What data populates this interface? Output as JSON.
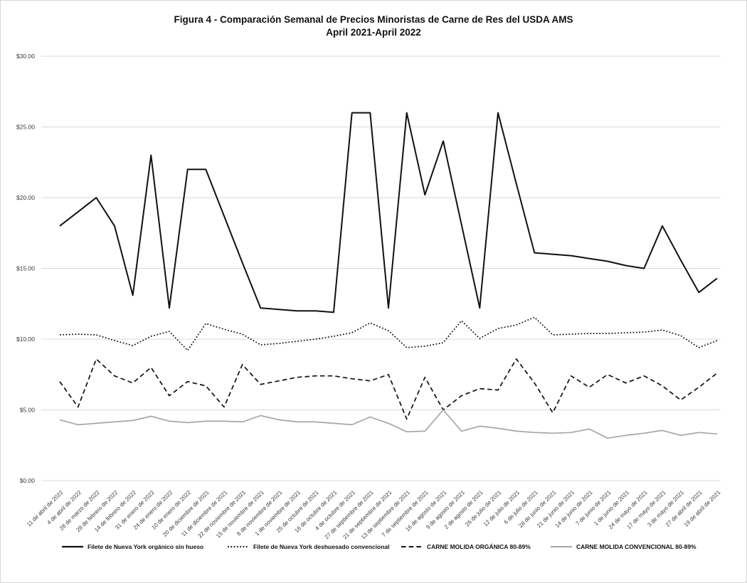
{
  "title": {
    "line1": "Figura 4 - Comparación Semanal de Precios Minoristas de Carne de Res del USDA AMS",
    "line2": "April 2021-April 2022"
  },
  "chart_data": {
    "type": "line",
    "title": "Figura 4 - Comparación Semanal de Precios Minoristas de Carne de Res del USDA AMS April 2021-April 2022",
    "xlabel": "",
    "ylabel": "",
    "ylim": [
      0,
      30
    ],
    "grid": true,
    "legend_position": "bottom",
    "y_ticks": [
      "$0.00",
      "$5.00",
      "$10.00",
      "$15.00",
      "$20.00",
      "$25.00",
      "$30.00"
    ],
    "categories": [
      "11 de abril de 2022",
      "4 de abril de 2022",
      "28 de marzo de 2022",
      "28 de febrero de 2022",
      "14 de febrero de 2022",
      "31 de enero de 2022",
      "24 de enero de 2022",
      "10 de enero de 2022",
      "20 de diciembre de 2021",
      "11 de diciembre de 2021",
      "22 de noviembre de 2021",
      "15 de noviembre de 2021",
      "8 de noviembre de 2021",
      "1 de noviembre de 2021",
      "25 de octubre de 2021",
      "18 de octubre de 2021",
      "4 de octubre de 2021",
      "27 de septiembre de 2021",
      "21 de septiembre de 2021",
      "13 de septiembre de 2021",
      "7 de septiembre de 2021",
      "16 de agosto de 2021",
      "9 de agosto de 2021",
      "2 de agosto de 2021",
      "26 de julio de 2021",
      "12 de julio de 2021",
      "6 de julio de 2021",
      "28 de junio de 2021",
      "21 de junio de 2021",
      "14 de junio de 2021",
      "7 de junio de 2021",
      "1 de junio de 2021",
      "24 de mayo de 2021",
      "17 de mayo de 2021",
      "3 de mayo de 2021",
      "27 de abril de 2021",
      "19 de abril de 2021"
    ],
    "series": [
      {
        "name": "Filete de Nueva York orgánico sin hueso",
        "style": "solid",
        "color": "#111111",
        "width": 2,
        "values": [
          18.0,
          19.0,
          20.0,
          18.0,
          13.1,
          23.0,
          12.2,
          22.0,
          22.0,
          18.7,
          15.4,
          12.2,
          12.1,
          12.0,
          12.0,
          11.9,
          26.0,
          26.0,
          12.2,
          26.0,
          20.2,
          24.0,
          18.1,
          12.2,
          26.0,
          21.0,
          16.1,
          16.0,
          15.9,
          15.7,
          15.5,
          15.2,
          15.0,
          18.0,
          15.6,
          13.3,
          14.3
        ]
      },
      {
        "name": "Filete de Nueva York deshuesado convencional",
        "style": "dotted",
        "color": "#111111",
        "width": 1.7,
        "values": [
          10.3,
          10.35,
          10.3,
          9.9,
          9.55,
          10.2,
          10.55,
          9.2,
          11.1,
          10.7,
          10.35,
          9.6,
          9.7,
          9.85,
          10.0,
          10.2,
          10.45,
          11.15,
          10.6,
          9.4,
          9.5,
          9.75,
          11.3,
          10.05,
          10.75,
          11.0,
          11.55,
          10.3,
          10.35,
          10.4,
          10.4,
          10.45,
          10.5,
          10.65,
          10.25,
          9.4,
          9.9
        ]
      },
      {
        "name": "CARNE MOLIDA ORGÁNICA 80-89%",
        "style": "dashed",
        "color": "#111111",
        "width": 1.7,
        "values": [
          7.0,
          5.2,
          8.6,
          7.4,
          6.9,
          8.0,
          6.0,
          7.0,
          6.7,
          5.2,
          8.2,
          6.8,
          7.05,
          7.3,
          7.4,
          7.4,
          7.2,
          7.05,
          7.5,
          4.35,
          7.3,
          5.0,
          6.0,
          6.5,
          6.4,
          8.6,
          6.9,
          4.8,
          7.4,
          6.6,
          7.5,
          6.9,
          7.4,
          6.7,
          5.7,
          6.6,
          7.6
        ]
      },
      {
        "name": "CARNE MOLIDA CONVENCIONAL 80-89%",
        "style": "solid",
        "color": "#a6a6a6",
        "width": 1.7,
        "values": [
          4.3,
          3.95,
          4.05,
          4.15,
          4.25,
          4.55,
          4.2,
          4.1,
          4.2,
          4.2,
          4.15,
          4.6,
          4.3,
          4.15,
          4.15,
          4.05,
          3.95,
          4.5,
          4.05,
          3.45,
          3.5,
          5.0,
          3.5,
          3.85,
          3.7,
          3.5,
          3.4,
          3.35,
          3.4,
          3.65,
          3.0,
          3.2,
          3.35,
          3.55,
          3.2,
          3.4,
          3.3
        ]
      }
    ],
    "colors": {
      "grid": "#d9d9d9",
      "black_line": "#111111",
      "gray_line": "#a6a6a6"
    }
  }
}
